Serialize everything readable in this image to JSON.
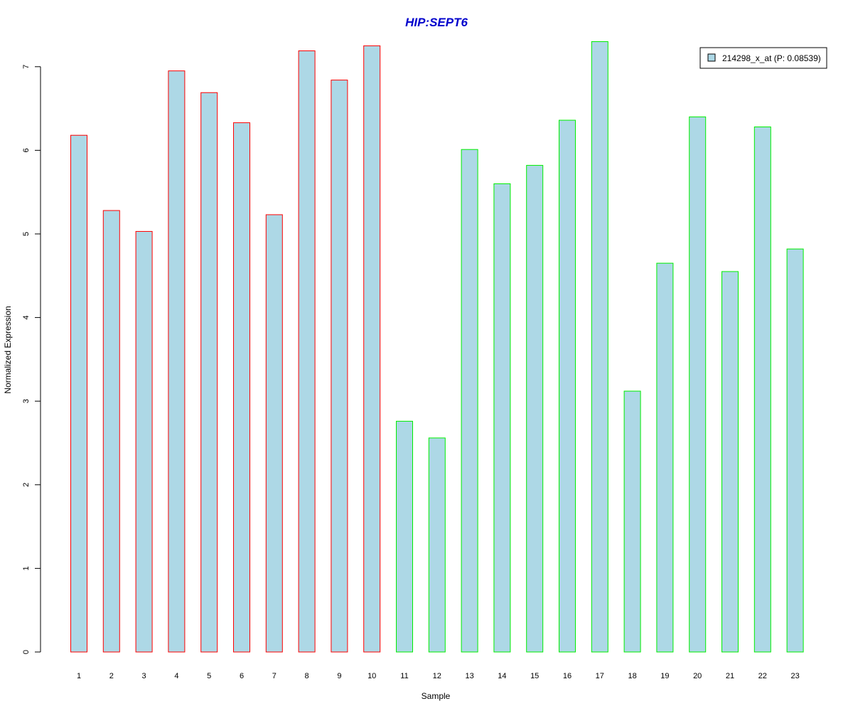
{
  "chart_data": {
    "type": "bar",
    "title": "HIP:SEPT6",
    "xlabel": "Sample",
    "ylabel": "Normalized Expression",
    "categories": [
      "1",
      "2",
      "3",
      "4",
      "5",
      "6",
      "7",
      "8",
      "9",
      "10",
      "11",
      "12",
      "13",
      "14",
      "15",
      "16",
      "17",
      "18",
      "19",
      "20",
      "21",
      "22",
      "23"
    ],
    "series": [
      {
        "name": "214298_x_at (P: 0.08539)",
        "values": [
          6.18,
          5.28,
          5.03,
          6.95,
          6.69,
          6.33,
          5.23,
          7.19,
          6.84,
          7.25,
          2.76,
          2.56,
          6.01,
          5.6,
          5.82,
          6.36,
          7.3,
          3.12,
          4.65,
          6.4,
          4.55,
          6.28,
          4.82
        ]
      }
    ],
    "group_of_sample": [
      "a",
      "a",
      "a",
      "a",
      "a",
      "a",
      "a",
      "a",
      "a",
      "a",
      "b",
      "b",
      "b",
      "b",
      "b",
      "b",
      "b",
      "b",
      "b",
      "b",
      "b",
      "b",
      "b"
    ],
    "ylim": [
      0,
      7.3
    ],
    "yticks": [
      0,
      1,
      2,
      3,
      4,
      5,
      6,
      7
    ],
    "grid": false,
    "legend_position": "top-right",
    "colors": {
      "bar_fill": "#add8e6",
      "group_a_border": "#ff0000",
      "group_b_border": "#00ee00",
      "title": "#0000cc",
      "axis": "#000000"
    }
  }
}
